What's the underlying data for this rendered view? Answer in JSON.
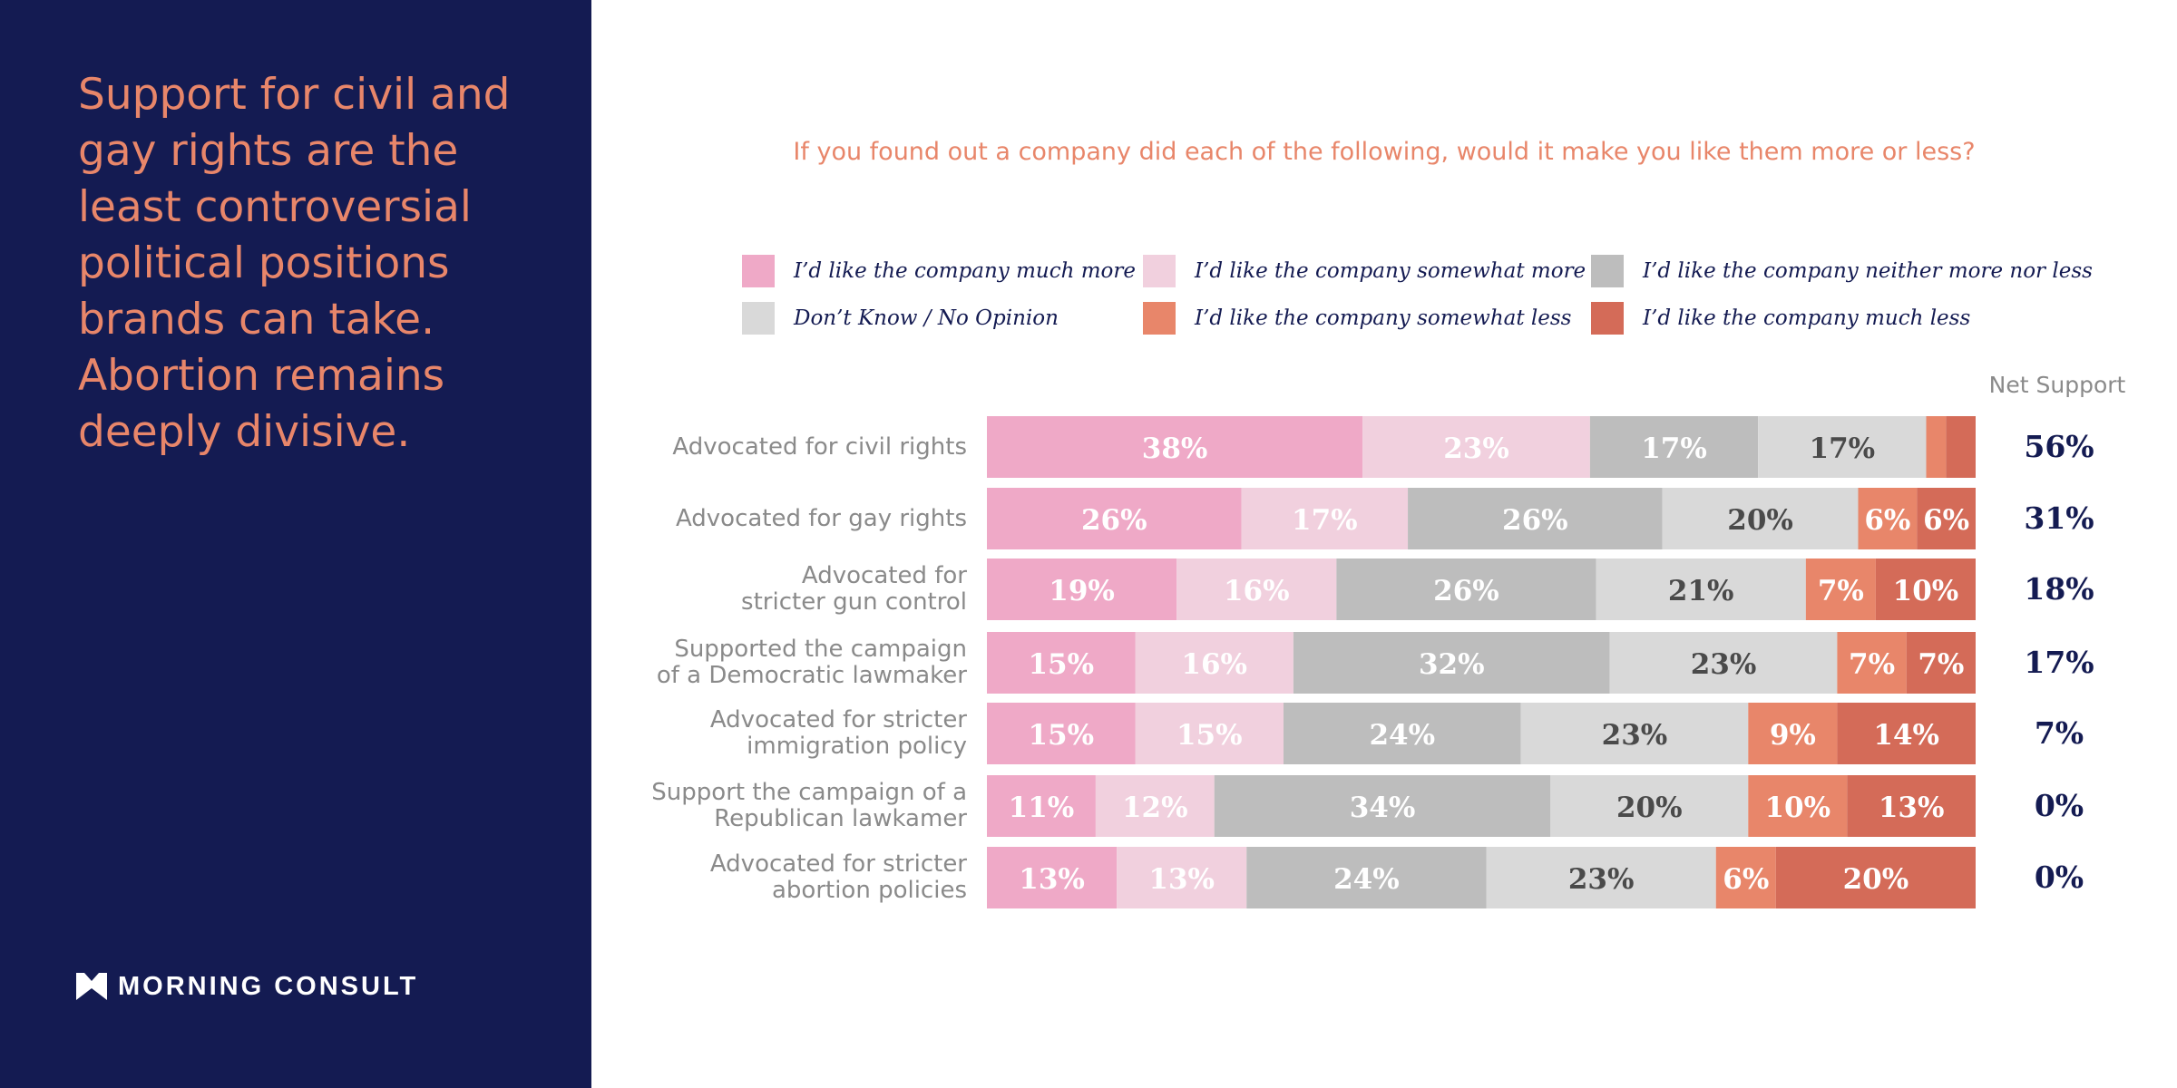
{
  "sidebar": {
    "headline": "Support for civil and gay rights are the least controversial political positions brands can take. Abortion remains deeply divisive.",
    "logo_text": "MORNING CONSULT",
    "background_color": "#141b52",
    "accent_color": "#e8866a"
  },
  "chart_data": {
    "type": "bar",
    "orientation": "horizontal",
    "stacked": true,
    "title": "If you found out a company did each of the following, would it make you like them more or less?",
    "legend_placement": "top",
    "net_header": "Net Support",
    "categories": [
      "Advocated for civil rights",
      "Advocated for gay rights",
      "Advocated for\nstricter gun control",
      "Supported the campaign\nof a Democratic lawmaker",
      "Advocated for stricter\nimmigration policy",
      "Support the campaign of a\nRepublican lawkamer",
      "Advocated for stricter\nabortion policies"
    ],
    "series": [
      {
        "name": "I’d like the company much more",
        "color": "#efa9c7",
        "label_color": "#ffffff",
        "values": [
          38,
          26,
          19,
          15,
          15,
          11,
          13
        ],
        "labels": [
          "38%",
          "26%",
          "19%",
          "15%",
          "15%",
          "11%",
          "13%"
        ]
      },
      {
        "name": "I’d like the company somewhat more",
        "color": "#f1d0de",
        "label_color": "#ffffff",
        "values": [
          23,
          17,
          16,
          16,
          15,
          12,
          13
        ],
        "labels": [
          "23%",
          "17%",
          "16%",
          "16%",
          "15%",
          "12%",
          "13%"
        ]
      },
      {
        "name": "I’d like the company neither more nor less",
        "color": "#bdbdbd",
        "label_color": "#ffffff",
        "values": [
          17,
          26,
          26,
          32,
          24,
          34,
          24
        ],
        "labels": [
          "17%",
          "26%",
          "26%",
          "32%",
          "24%",
          "34%",
          "24%"
        ]
      },
      {
        "name": "Don’t Know / No Opinion",
        "color": "#d9d9d9",
        "label_color": "#4a4a4a",
        "values": [
          17,
          20,
          21,
          23,
          23,
          20,
          23
        ],
        "labels": [
          "17%",
          "20%",
          "21%",
          "23%",
          "23%",
          "20%",
          "23%"
        ]
      },
      {
        "name": "I’d like the company somewhat less",
        "color": "#e8866a",
        "label_color": "#ffffff",
        "values": [
          2,
          6,
          7,
          7,
          9,
          10,
          6
        ],
        "labels": [
          "",
          "6%",
          "7%",
          "7%",
          "9%",
          "10%",
          "6%"
        ]
      },
      {
        "name": "I’d like the company much less",
        "color": "#d46b58",
        "label_color": "#ffffff",
        "values": [
          3,
          6,
          10,
          7,
          14,
          13,
          20
        ],
        "labels": [
          "",
          "6%",
          "10%",
          "7%",
          "14%",
          "13%",
          "20%"
        ]
      }
    ],
    "net_support": [
      "56%",
      "31%",
      "18%",
      "17%",
      "7%",
      "0%",
      "0%"
    ],
    "xlim": [
      0,
      100
    ],
    "grid": false
  }
}
